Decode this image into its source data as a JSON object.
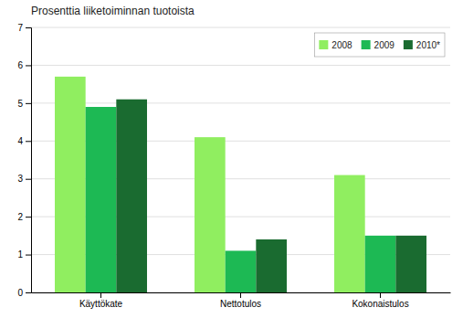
{
  "chart_data": {
    "type": "bar",
    "title": "Prosenttia liiketoiminnan tuotoista",
    "categories": [
      "Käyttökate",
      "Nettotulos",
      "Kokonaistulos"
    ],
    "series": [
      {
        "name": "2008",
        "values": [
          5.7,
          4.1,
          3.1
        ],
        "color": "#90EE60"
      },
      {
        "name": "2009",
        "values": [
          4.9,
          1.1,
          1.5
        ],
        "color": "#1DB954"
      },
      {
        "name": "2010*",
        "values": [
          5.1,
          1.4,
          1.5
        ],
        "color": "#1A6B30"
      }
    ],
    "ylim": [
      0,
      7
    ],
    "yticks": [
      0,
      1,
      2,
      3,
      4,
      5,
      6,
      7
    ],
    "grid": true,
    "legend": "upper right"
  }
}
